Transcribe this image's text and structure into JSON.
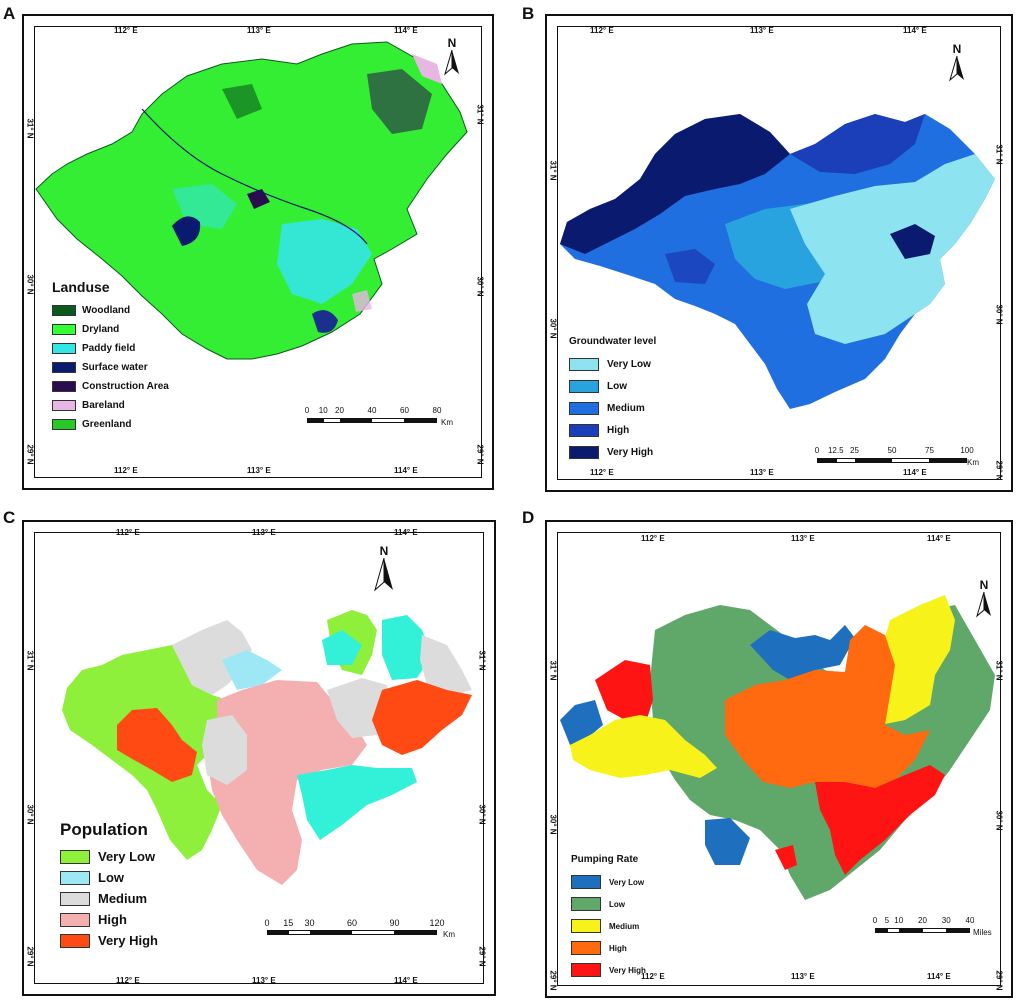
{
  "panels": {
    "a": {
      "label": "A",
      "top_ticks": [
        "112° E",
        "113° E",
        "114° E"
      ],
      "bottom_ticks": [
        "112° E",
        "113° E",
        "114° E"
      ],
      "left_ticks": [
        "31° N",
        "30° N",
        "29° N"
      ],
      "right_ticks": [
        "31° N",
        "30° N",
        "29° N"
      ],
      "north": "N",
      "legend": {
        "title": "Landuse",
        "items": [
          {
            "label": "Woodland",
            "color": "#0b5a1d"
          },
          {
            "label": "Dryland",
            "color": "#33ff33"
          },
          {
            "label": "Paddy field",
            "color": "#33e6e6"
          },
          {
            "label": "Surface water",
            "color": "#0a1a6e"
          },
          {
            "label": "Construction Area",
            "color": "#2b0d4f"
          },
          {
            "label": "Bareland",
            "color": "#e8b6e3"
          },
          {
            "label": "Greenland",
            "color": "#26c926"
          }
        ]
      },
      "scale": {
        "labels": [
          "0",
          "10",
          "20",
          "40",
          "60",
          "80"
        ],
        "unit": "Km"
      }
    },
    "b": {
      "label": "B",
      "top_ticks": [
        "112° E",
        "113° E",
        "114° E"
      ],
      "bottom_ticks": [
        "112° E",
        "113° E",
        "114° E"
      ],
      "left_ticks": [
        "31° N",
        "30° N"
      ],
      "right_ticks": [
        "31° N",
        "30° N",
        "29° N"
      ],
      "north": "N",
      "legend": {
        "title": "Groundwater level",
        "items": [
          {
            "label": "Very Low",
            "color": "#8ee3f0"
          },
          {
            "label": "Low",
            "color": "#29a3e0"
          },
          {
            "label": "Medium",
            "color": "#1f6fe0"
          },
          {
            "label": "High",
            "color": "#1a3fb8"
          },
          {
            "label": "Very High",
            "color": "#0a1a6e"
          }
        ]
      },
      "scale": {
        "labels": [
          "0",
          "12.5",
          "25",
          "50",
          "75",
          "100"
        ],
        "unit": "Km"
      }
    },
    "c": {
      "label": "C",
      "top_ticks": [
        "112° E",
        "113° E",
        "114° E"
      ],
      "bottom_ticks": [
        "112° E",
        "113° E",
        "114° E"
      ],
      "left_ticks": [
        "31° N",
        "30° N",
        "29° N"
      ],
      "right_ticks": [
        "31° N",
        "30° N",
        "29° N"
      ],
      "north": "N",
      "legend": {
        "title": "Population",
        "items": [
          {
            "label": "Very Low",
            "color": "#8ef03a"
          },
          {
            "label": "Low",
            "color": "#9ee8f5"
          },
          {
            "label": "Medium",
            "color": "#dcdcdc"
          },
          {
            "label": "High",
            "color": "#f4b0b0"
          },
          {
            "label": "Very High",
            "color": "#ff4a14"
          }
        ]
      },
      "scale": {
        "labels": [
          "0",
          "15",
          "30",
          "60",
          "90",
          "120"
        ],
        "unit": "Km"
      }
    },
    "d": {
      "label": "D",
      "top_ticks": [
        "112° E",
        "113° E",
        "114° E"
      ],
      "bottom_ticks": [
        "112° E",
        "113° E",
        "114° E"
      ],
      "left_ticks": [
        "31° N",
        "30° N",
        "29° N"
      ],
      "right_ticks": [
        "31° N",
        "30° N",
        "29° N"
      ],
      "north": "N",
      "legend": {
        "title": "Pumping Rate",
        "items": [
          {
            "label": "Very Low",
            "color": "#1f6fbf"
          },
          {
            "label": "Low",
            "color": "#5fa86a"
          },
          {
            "label": "Medium",
            "color": "#f7f21a"
          },
          {
            "label": "High",
            "color": "#ff6a10"
          },
          {
            "label": "Very High",
            "color": "#ff1414"
          }
        ]
      },
      "scale": {
        "labels": [
          "0",
          "5",
          "10",
          "20",
          "30",
          "40"
        ],
        "unit": "Miles"
      }
    }
  }
}
